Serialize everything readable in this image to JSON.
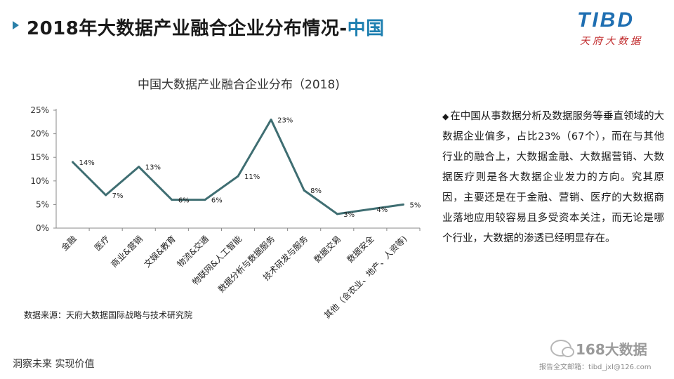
{
  "header": {
    "title_main": "2018年大数据产业融合企业分布情况-",
    "title_accent": "中国",
    "logo_main": "TIBD",
    "logo_sub": "天府大数据"
  },
  "right_panel": {
    "bullet": "◆",
    "text": "在中国从事数据分析及数据服务等垂直领域的大数据企业偏多，占比23%（67个），而在与其他行业的融合上，大数据金融、大数据营销、大数据医疗则是各大数据企业发力的方向。究其原因，主要还是在于金融、营销、医疗的大数据商业落地应用较容易且多受资本关注，而无论是哪个行业，大数据的渗透已经明显存在。"
  },
  "source_note": "数据来源：天府大数据国际战略与技术研究院",
  "footer": {
    "slogan": "洞察未来 实现价值",
    "watermark_name": "168大数据",
    "watermark_mail": "报告全文邮箱：tibd_jxl@126.com"
  },
  "chart_data": {
    "type": "line",
    "title": "中国大数据产业融合企业分布（2018)",
    "categories": [
      "金融",
      "医疗",
      "商业&营销",
      "文娱&教育",
      "物流&交通",
      "物联网&人工智能",
      "数据分析与数据服务",
      "技术研发与服务",
      "数据交易",
      "数据安全",
      "其他（含农业、地产、人资等)"
    ],
    "values": [
      14,
      7,
      13,
      6,
      6,
      11,
      23,
      8,
      3,
      4,
      5
    ],
    "data_labels": [
      "14%",
      "7%",
      "13%",
      "6%",
      "6%",
      "11%",
      "23%",
      "8%",
      "3%",
      "4%",
      "5%"
    ],
    "y_ticks": [
      "0%",
      "5%",
      "10%",
      "15%",
      "20%",
      "25%"
    ],
    "ylim": [
      0,
      25
    ],
    "grid": false,
    "line_color": "#3f6e72",
    "xlabel": "",
    "ylabel": ""
  }
}
